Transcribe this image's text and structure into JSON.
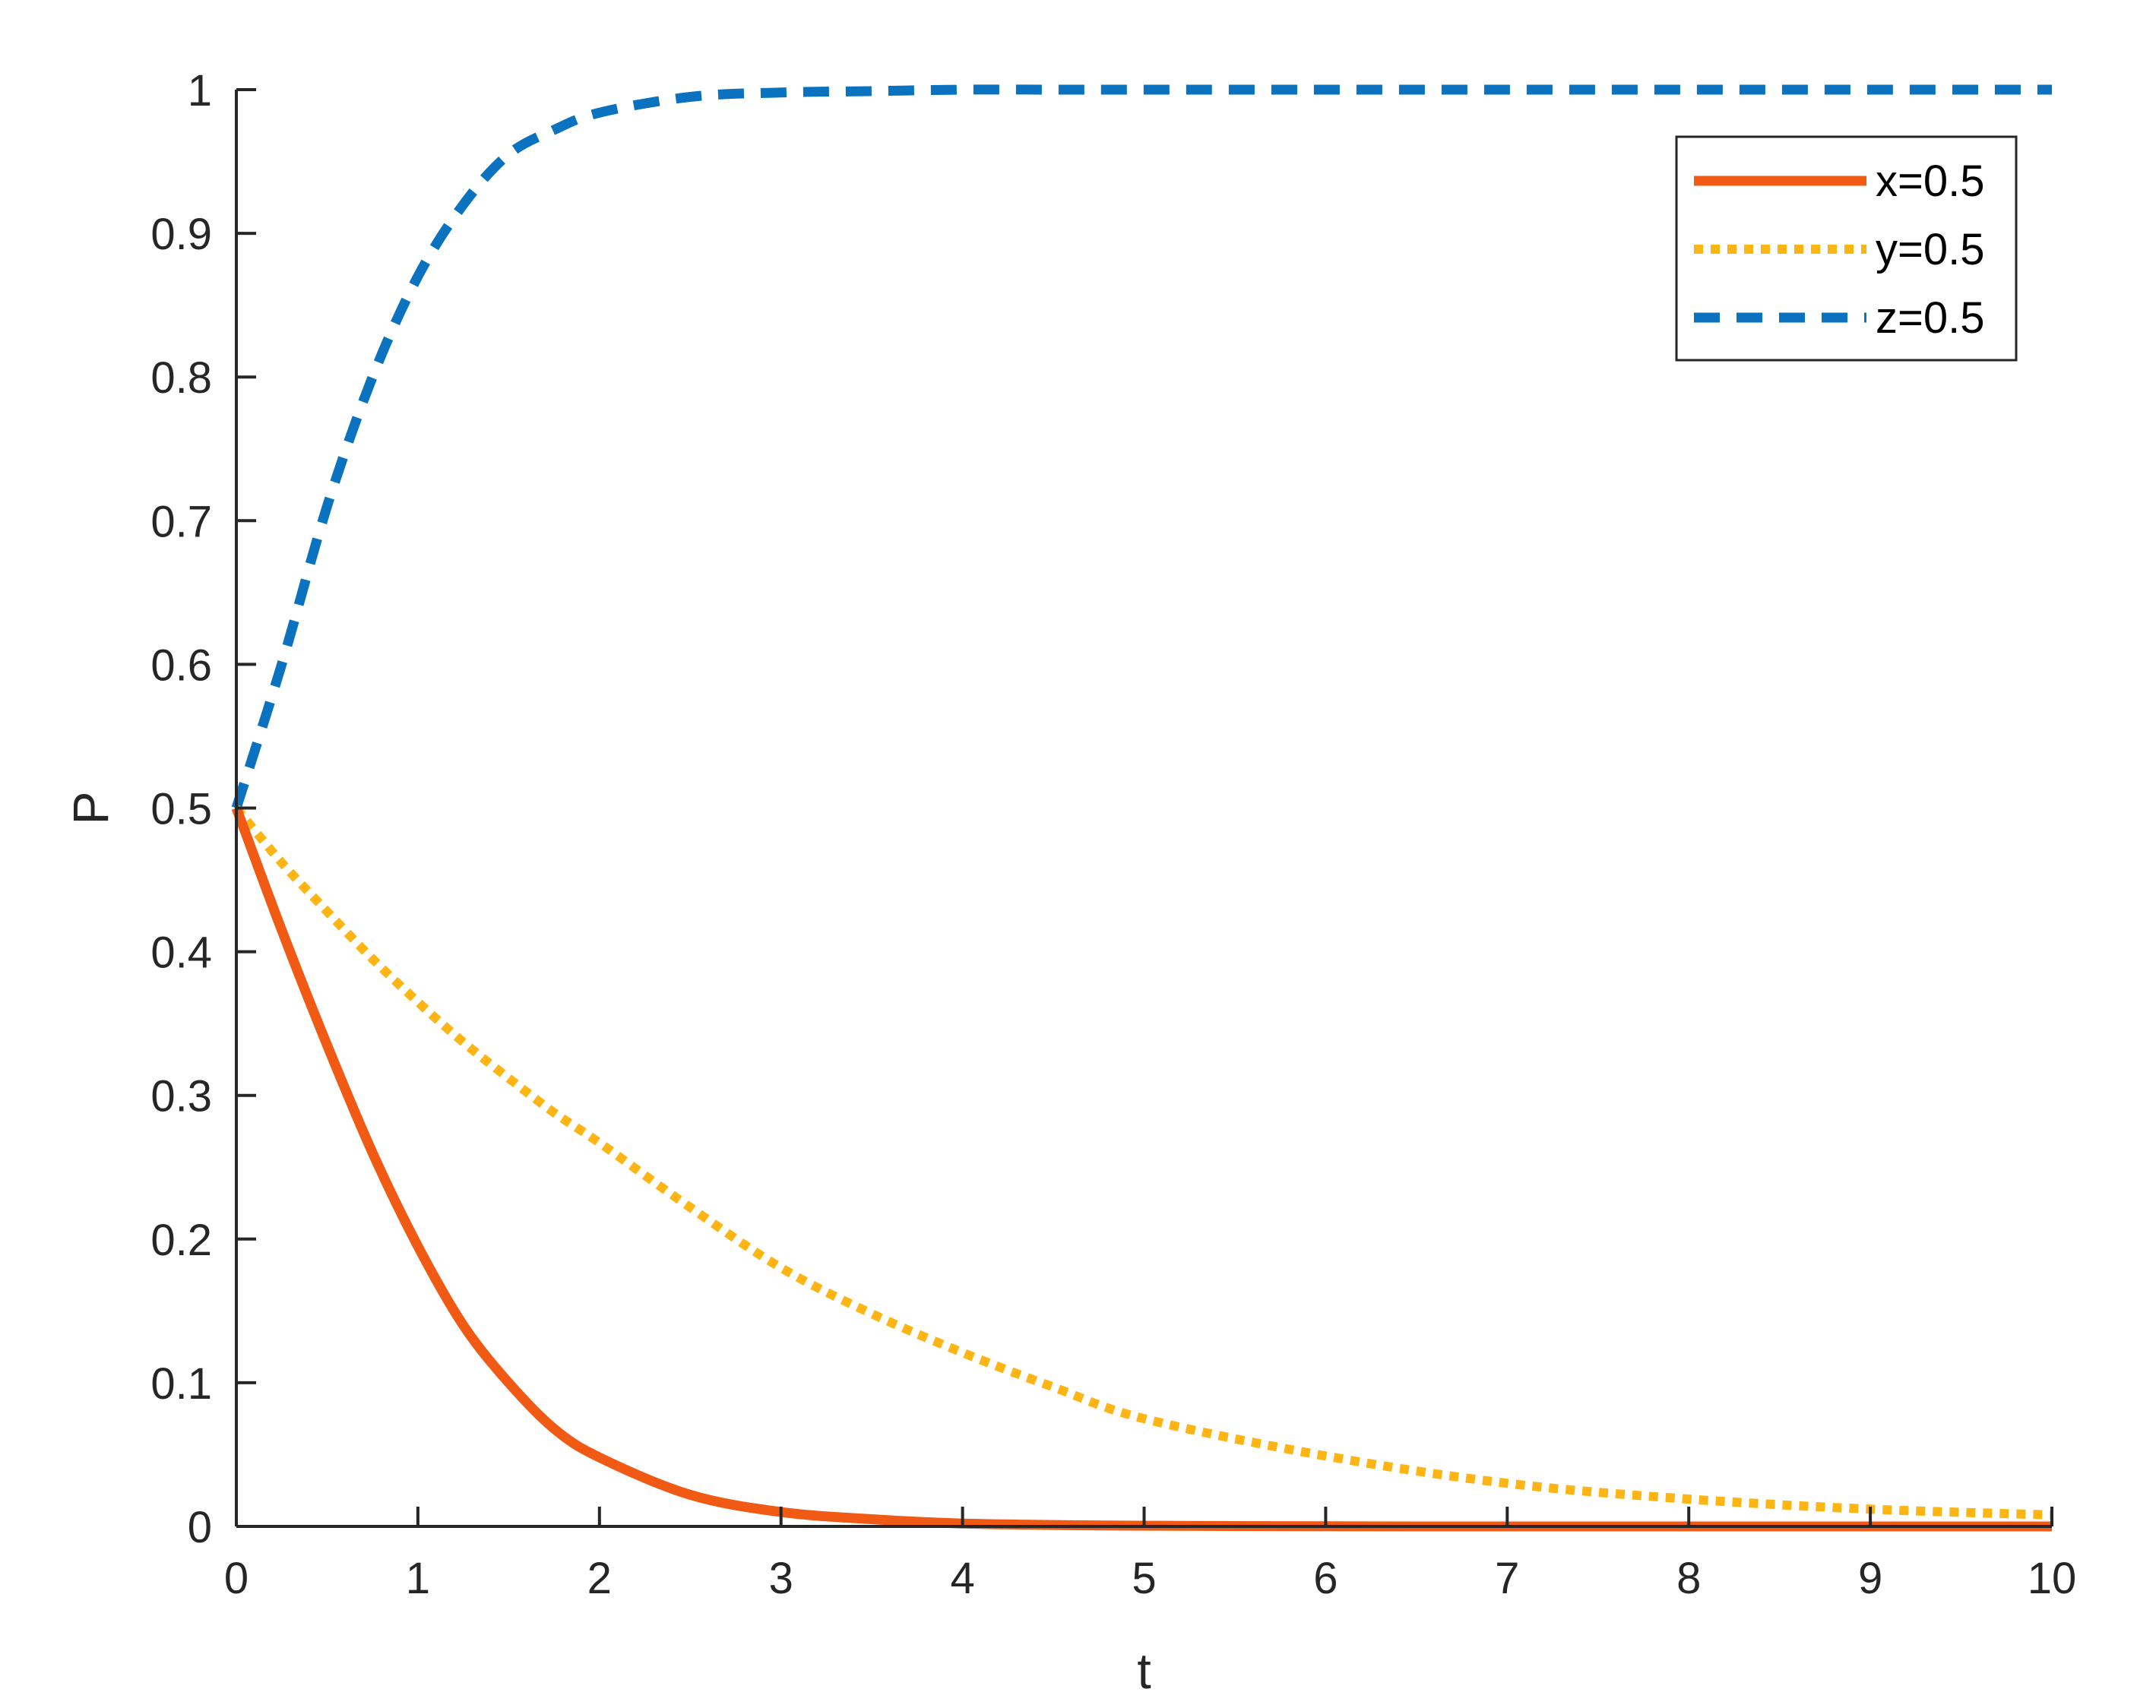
{
  "chart_data": {
    "type": "line",
    "title": "",
    "xlabel": "t",
    "ylabel": "P",
    "xlim": [
      0,
      10
    ],
    "ylim": [
      0,
      1
    ],
    "xticks": [
      "0",
      "1",
      "2",
      "3",
      "4",
      "5",
      "6",
      "7",
      "8",
      "9",
      "10"
    ],
    "yticks": [
      "0",
      "0.1",
      "0.2",
      "0.3",
      "0.4",
      "0.5",
      "0.6",
      "0.7",
      "0.8",
      "0.9",
      "1"
    ],
    "grid": false,
    "legend_position": "top-right",
    "x": [
      0,
      0.25,
      0.5,
      0.75,
      1,
      1.25,
      1.5,
      1.75,
      2,
      2.5,
      3,
      3.5,
      4,
      4.5,
      5,
      6,
      7,
      8,
      9,
      10
    ],
    "series": [
      {
        "name": "x=0.5",
        "color": "#F05A14",
        "style": "solid",
        "values": [
          0.5,
          0.415,
          0.335,
          0.26,
          0.195,
          0.14,
          0.1,
          0.068,
          0.048,
          0.022,
          0.01,
          0.005,
          0.002,
          0.001,
          0.0005,
          0.0001,
          0,
          0,
          0,
          0
        ]
      },
      {
        "name": "y=0.5",
        "color": "#FDB515",
        "style": "dotted",
        "values": [
          0.5,
          0.462,
          0.428,
          0.395,
          0.365,
          0.337,
          0.312,
          0.288,
          0.267,
          0.222,
          0.18,
          0.148,
          0.121,
          0.097,
          0.075,
          0.049,
          0.03,
          0.019,
          0.012,
          0.008
        ]
      },
      {
        "name": "z=0.5",
        "color": "#0A72BE",
        "style": "dashed",
        "values": [
          0.5,
          0.6,
          0.71,
          0.8,
          0.87,
          0.92,
          0.955,
          0.972,
          0.984,
          0.995,
          0.998,
          0.999,
          1,
          1,
          1,
          1,
          1,
          1,
          1,
          1
        ]
      }
    ]
  }
}
